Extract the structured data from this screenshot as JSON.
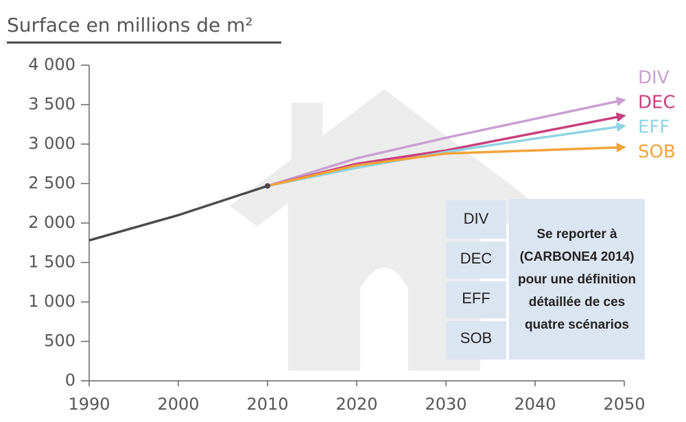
{
  "chart_data": {
    "type": "line",
    "title": "Surface en millions de m²",
    "x": [
      1990,
      2000,
      2010,
      2020,
      2030,
      2040,
      2050
    ],
    "xlim": [
      1990,
      2050
    ],
    "xticks": [
      1990,
      2000,
      2010,
      2020,
      2030,
      2040,
      2050
    ],
    "ylim": [
      0,
      4000
    ],
    "yticks": [
      0,
      500,
      {
        "value": 1000,
        "label": "1 000"
      },
      {
        "value": 1500,
        "label": "1 500"
      },
      {
        "value": 2000,
        "label": "2 000"
      },
      {
        "value": 2500,
        "label": "2 500"
      },
      {
        "value": 3000,
        "label": "3 000"
      },
      {
        "value": 3500,
        "label": "3 500"
      },
      {
        "value": 4000,
        "label": "4 000"
      }
    ],
    "grid": false,
    "series": [
      {
        "color": "#4a4a4a",
        "values": [
          1780,
          2100,
          2470,
          null,
          null,
          null,
          null
        ]
      },
      {
        "name": "DIV",
        "color": "#c9a0d2",
        "values": [
          null,
          null,
          2470,
          2820,
          3080,
          3320,
          3560
        ]
      },
      {
        "name": "DEC",
        "color": "#c8407e",
        "values": [
          null,
          null,
          2470,
          2750,
          2920,
          3140,
          3360
        ]
      },
      {
        "name": "EFF",
        "color": "#8fd3e2",
        "values": [
          null,
          null,
          2470,
          2700,
          2900,
          3070,
          3230
        ]
      },
      {
        "name": "SOB",
        "color": "#f2a33a",
        "values": [
          null,
          null,
          2470,
          2730,
          2880,
          2920,
          2960
        ]
      }
    ],
    "annotation": [
      "Se reporter à",
      "(CARBONE4 2014)",
      "pour une définition",
      "détaillée de ces",
      "quatre scénarios"
    ]
  }
}
